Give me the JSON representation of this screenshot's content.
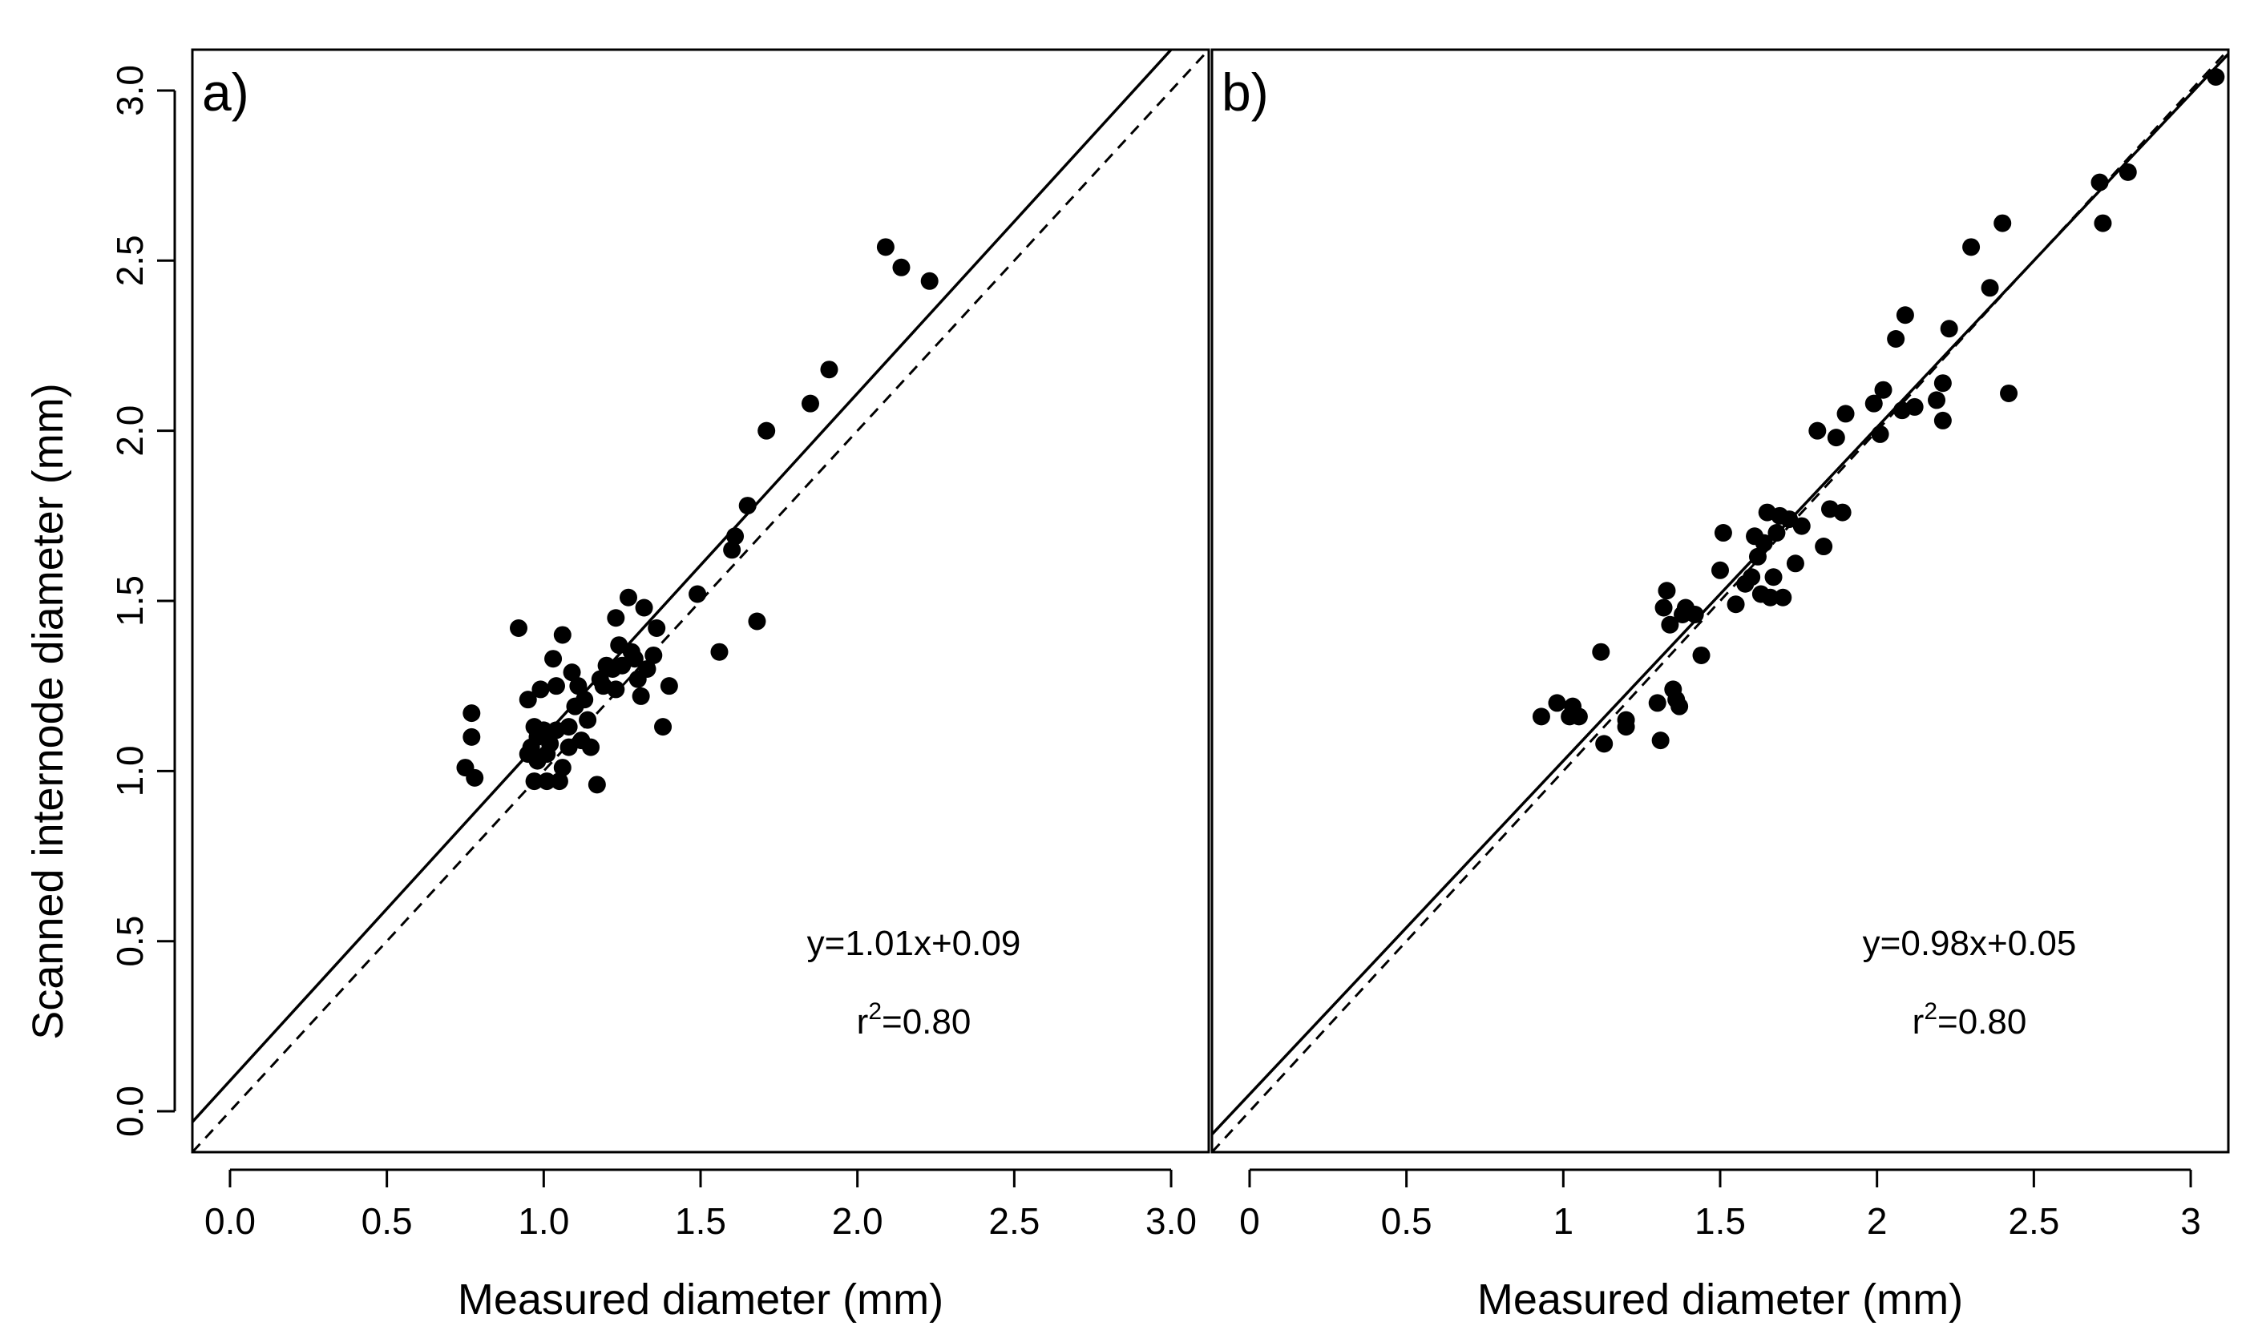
{
  "colors": {
    "ink": "#000000",
    "background": "#ffffff"
  },
  "figure": {
    "ylabel": "Scanned internode diameter (mm)"
  },
  "chart_data": [
    {
      "type": "scatter",
      "panel_label": "a)",
      "xlabel": "Measured diameter (mm)",
      "ylabel": "Scanned internode diameter (mm)",
      "xlim": [
        -0.12,
        3.12
      ],
      "ylim": [
        -0.12,
        3.12
      ],
      "xticks": [
        0.0,
        0.5,
        1.0,
        1.5,
        2.0,
        2.5,
        3.0
      ],
      "xtick_labels": [
        "0.0",
        "0.5",
        "1.0",
        "1.5",
        "2.0",
        "2.5",
        "3.0"
      ],
      "yticks": [
        0.0,
        0.5,
        1.0,
        1.5,
        2.0,
        2.5,
        3.0
      ],
      "ytick_labels": [
        "0.0",
        "0.5",
        "1.0",
        "1.5",
        "2.0",
        "2.5",
        "3.0"
      ],
      "fit_line": {
        "slope": 1.01,
        "intercept": 0.09,
        "style": "solid"
      },
      "reference_line": {
        "slope": 1.0,
        "intercept": 0.0,
        "style": "dashed"
      },
      "equation": "y=1.01x+0.09",
      "r2_prefix": "r",
      "r2_sup": "2",
      "r2_value": "=0.80",
      "points": [
        [
          0.75,
          1.01
        ],
        [
          0.77,
          1.17
        ],
        [
          0.77,
          1.1
        ],
        [
          0.78,
          0.98
        ],
        [
          0.92,
          1.42
        ],
        [
          0.95,
          1.21
        ],
        [
          0.95,
          1.05
        ],
        [
          0.96,
          1.07
        ],
        [
          0.97,
          0.97
        ],
        [
          0.97,
          1.13
        ],
        [
          0.98,
          1.1
        ],
        [
          0.98,
          1.03
        ],
        [
          0.99,
          1.24
        ],
        [
          1.0,
          1.12
        ],
        [
          1.01,
          0.97
        ],
        [
          1.01,
          1.05
        ],
        [
          1.02,
          1.08
        ],
        [
          1.03,
          1.33
        ],
        [
          1.04,
          1.25
        ],
        [
          1.04,
          1.12
        ],
        [
          1.05,
          0.97
        ],
        [
          1.06,
          1.4
        ],
        [
          1.06,
          1.01
        ],
        [
          1.08,
          1.07
        ],
        [
          1.08,
          1.13
        ],
        [
          1.09,
          1.29
        ],
        [
          1.1,
          1.19
        ],
        [
          1.11,
          1.25
        ],
        [
          1.12,
          1.09
        ],
        [
          1.13,
          1.21
        ],
        [
          1.14,
          1.15
        ],
        [
          1.15,
          1.07
        ],
        [
          1.17,
          0.96
        ],
        [
          1.18,
          1.27
        ],
        [
          1.19,
          1.25
        ],
        [
          1.2,
          1.31
        ],
        [
          1.22,
          1.3
        ],
        [
          1.23,
          1.24
        ],
        [
          1.23,
          1.45
        ],
        [
          1.24,
          1.37
        ],
        [
          1.25,
          1.31
        ],
        [
          1.27,
          1.51
        ],
        [
          1.28,
          1.35
        ],
        [
          1.29,
          1.33
        ],
        [
          1.3,
          1.27
        ],
        [
          1.31,
          1.22
        ],
        [
          1.32,
          1.48
        ],
        [
          1.33,
          1.3
        ],
        [
          1.35,
          1.34
        ],
        [
          1.36,
          1.42
        ],
        [
          1.38,
          1.13
        ],
        [
          1.4,
          1.25
        ],
        [
          1.49,
          1.52
        ],
        [
          1.56,
          1.35
        ],
        [
          1.6,
          1.65
        ],
        [
          1.61,
          1.69
        ],
        [
          1.65,
          1.78
        ],
        [
          1.68,
          1.44
        ],
        [
          1.71,
          2.0
        ],
        [
          1.85,
          2.08
        ],
        [
          1.91,
          2.18
        ],
        [
          2.09,
          2.54
        ],
        [
          2.14,
          2.48
        ],
        [
          2.23,
          2.44
        ]
      ]
    },
    {
      "type": "scatter",
      "panel_label": "b)",
      "xlabel": "Measured diameter (mm)",
      "ylabel": "",
      "xlim": [
        -0.12,
        3.12
      ],
      "ylim": [
        -0.12,
        3.12
      ],
      "xticks": [
        0,
        0.5,
        1,
        1.5,
        2,
        2.5,
        3
      ],
      "xtick_labels": [
        "0",
        "0.5",
        "1",
        "1.5",
        "2",
        "2.5",
        "3"
      ],
      "fit_line": {
        "slope": 0.98,
        "intercept": 0.05,
        "style": "solid"
      },
      "reference_line": {
        "slope": 1.0,
        "intercept": 0.0,
        "style": "dashed"
      },
      "equation": "y=0.98x+0.05",
      "r2_prefix": "r",
      "r2_sup": "2",
      "r2_value": "=0.80",
      "points": [
        [
          0.93,
          1.16
        ],
        [
          0.98,
          1.2
        ],
        [
          1.02,
          1.16
        ],
        [
          1.03,
          1.19
        ],
        [
          1.05,
          1.16
        ],
        [
          1.12,
          1.35
        ],
        [
          1.13,
          1.08
        ],
        [
          1.2,
          1.15
        ],
        [
          1.2,
          1.13
        ],
        [
          1.3,
          1.2
        ],
        [
          1.31,
          1.09
        ],
        [
          1.32,
          1.48
        ],
        [
          1.33,
          1.53
        ],
        [
          1.34,
          1.43
        ],
        [
          1.35,
          1.24
        ],
        [
          1.36,
          1.21
        ],
        [
          1.37,
          1.19
        ],
        [
          1.38,
          1.46
        ],
        [
          1.39,
          1.48
        ],
        [
          1.42,
          1.46
        ],
        [
          1.44,
          1.34
        ],
        [
          1.5,
          1.59
        ],
        [
          1.51,
          1.7
        ],
        [
          1.55,
          1.49
        ],
        [
          1.58,
          1.55
        ],
        [
          1.6,
          1.57
        ],
        [
          1.61,
          1.69
        ],
        [
          1.62,
          1.63
        ],
        [
          1.63,
          1.52
        ],
        [
          1.64,
          1.67
        ],
        [
          1.65,
          1.76
        ],
        [
          1.66,
          1.51
        ],
        [
          1.67,
          1.57
        ],
        [
          1.68,
          1.7
        ],
        [
          1.69,
          1.75
        ],
        [
          1.7,
          1.51
        ],
        [
          1.72,
          1.74
        ],
        [
          1.74,
          1.61
        ],
        [
          1.76,
          1.72
        ],
        [
          1.81,
          2.0
        ],
        [
          1.83,
          1.66
        ],
        [
          1.85,
          1.77
        ],
        [
          1.87,
          1.98
        ],
        [
          1.89,
          1.76
        ],
        [
          1.9,
          2.05
        ],
        [
          1.99,
          2.08
        ],
        [
          2.01,
          1.99
        ],
        [
          2.02,
          2.12
        ],
        [
          2.06,
          2.27
        ],
        [
          2.08,
          2.06
        ],
        [
          2.09,
          2.34
        ],
        [
          2.12,
          2.07
        ],
        [
          2.19,
          2.09
        ],
        [
          2.21,
          2.14
        ],
        [
          2.21,
          2.03
        ],
        [
          2.23,
          2.3
        ],
        [
          2.3,
          2.54
        ],
        [
          2.36,
          2.42
        ],
        [
          2.4,
          2.61
        ],
        [
          2.42,
          2.11
        ],
        [
          2.71,
          2.73
        ],
        [
          2.72,
          2.61
        ],
        [
          2.8,
          2.76
        ],
        [
          3.08,
          3.04
        ]
      ]
    }
  ]
}
